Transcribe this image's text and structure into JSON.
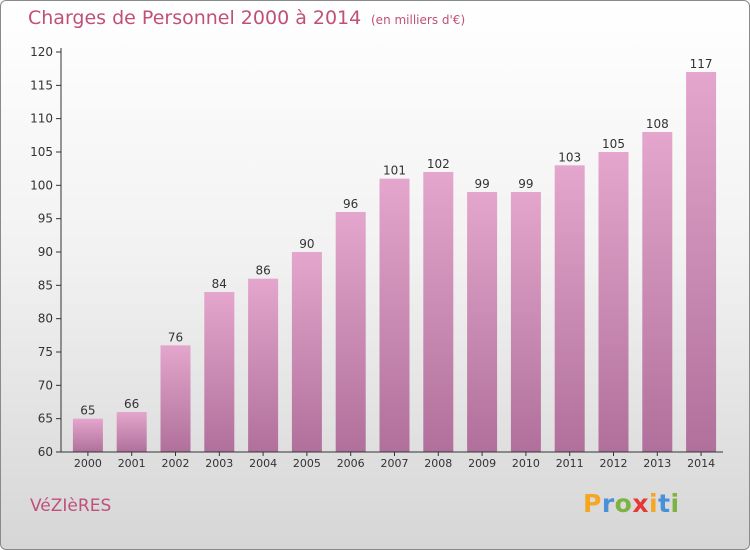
{
  "title": "Charges de Personnel 2000 à 2014",
  "subtitle": "(en milliers d'€)",
  "commune": "VéZIèRES",
  "logo": {
    "letters": [
      "P",
      "r",
      "o",
      "x",
      "i",
      "t",
      "i"
    ],
    "colors": [
      "#f5a623",
      "#4a90d9",
      "#7cb342",
      "#e53935",
      "#f5a623",
      "#4a90d9",
      "#7cb342"
    ]
  },
  "colors": {
    "bar_top": "#e4a6cc",
    "bar_bottom": "#b0709b",
    "text": "#c0507a",
    "axis": "#333333"
  },
  "chart_data": {
    "type": "bar",
    "title": "Charges de Personnel 2000 à 2014",
    "subtitle": "(en milliers d'€)",
    "xlabel": "",
    "ylabel": "",
    "categories": [
      "2000",
      "2001",
      "2002",
      "2003",
      "2004",
      "2005",
      "2006",
      "2007",
      "2008",
      "2009",
      "2010",
      "2011",
      "2012",
      "2013",
      "2014"
    ],
    "values": [
      65,
      66,
      76,
      84,
      86,
      90,
      96,
      101,
      102,
      99,
      99,
      103,
      105,
      108,
      117
    ],
    "ylim": [
      60,
      120
    ],
    "yticks": [
      60,
      65,
      70,
      75,
      80,
      85,
      90,
      95,
      100,
      105,
      110,
      115,
      120
    ],
    "grid": false,
    "legend": "none"
  }
}
